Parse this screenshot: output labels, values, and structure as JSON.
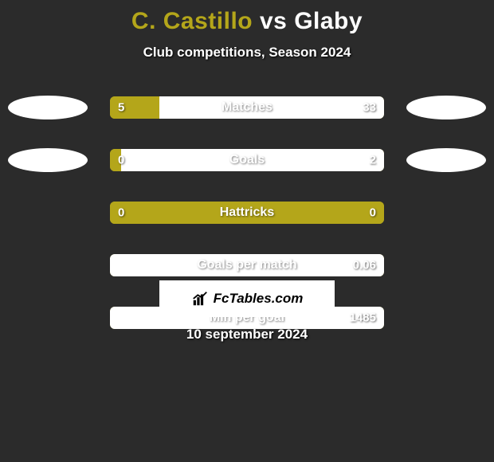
{
  "background_color": "#2b2b2b",
  "accent_color": "#b4a61a",
  "bar_right_color": "#ffffff",
  "title": {
    "player1": "C. Castillo",
    "vs": "vs",
    "player2": "Glaby",
    "p1_color": "#b4a61a",
    "p2_color": "#ffffff",
    "vs_color": "#ffffff",
    "fontsize": 30
  },
  "subtitle": "Club competitions, Season 2024",
  "rows": [
    {
      "label": "Matches",
      "left_val": "5",
      "right_val": "33",
      "left_pct": 18,
      "right_pct": 82,
      "has_bubbles": true
    },
    {
      "label": "Goals",
      "left_val": "0",
      "right_val": "2",
      "left_pct": 4,
      "right_pct": 96,
      "has_bubbles": true
    },
    {
      "label": "Hattricks",
      "left_val": "0",
      "right_val": "0",
      "left_pct": 100,
      "right_pct": 0,
      "has_bubbles": false
    },
    {
      "label": "Goals per match",
      "left_val": "",
      "right_val": "0.06",
      "left_pct": 0,
      "right_pct": 100,
      "has_bubbles": false
    },
    {
      "label": "Min per goal",
      "left_val": "",
      "right_val": "1485",
      "left_pct": 0,
      "right_pct": 100,
      "has_bubbles": false
    }
  ],
  "logo_text": "FcTables.com",
  "footer_date": "10 september 2024",
  "bar": {
    "outer_width": 344,
    "height": 28,
    "radius": 6
  },
  "bubble": {
    "width": 100,
    "height": 30,
    "color": "#ffffff"
  }
}
